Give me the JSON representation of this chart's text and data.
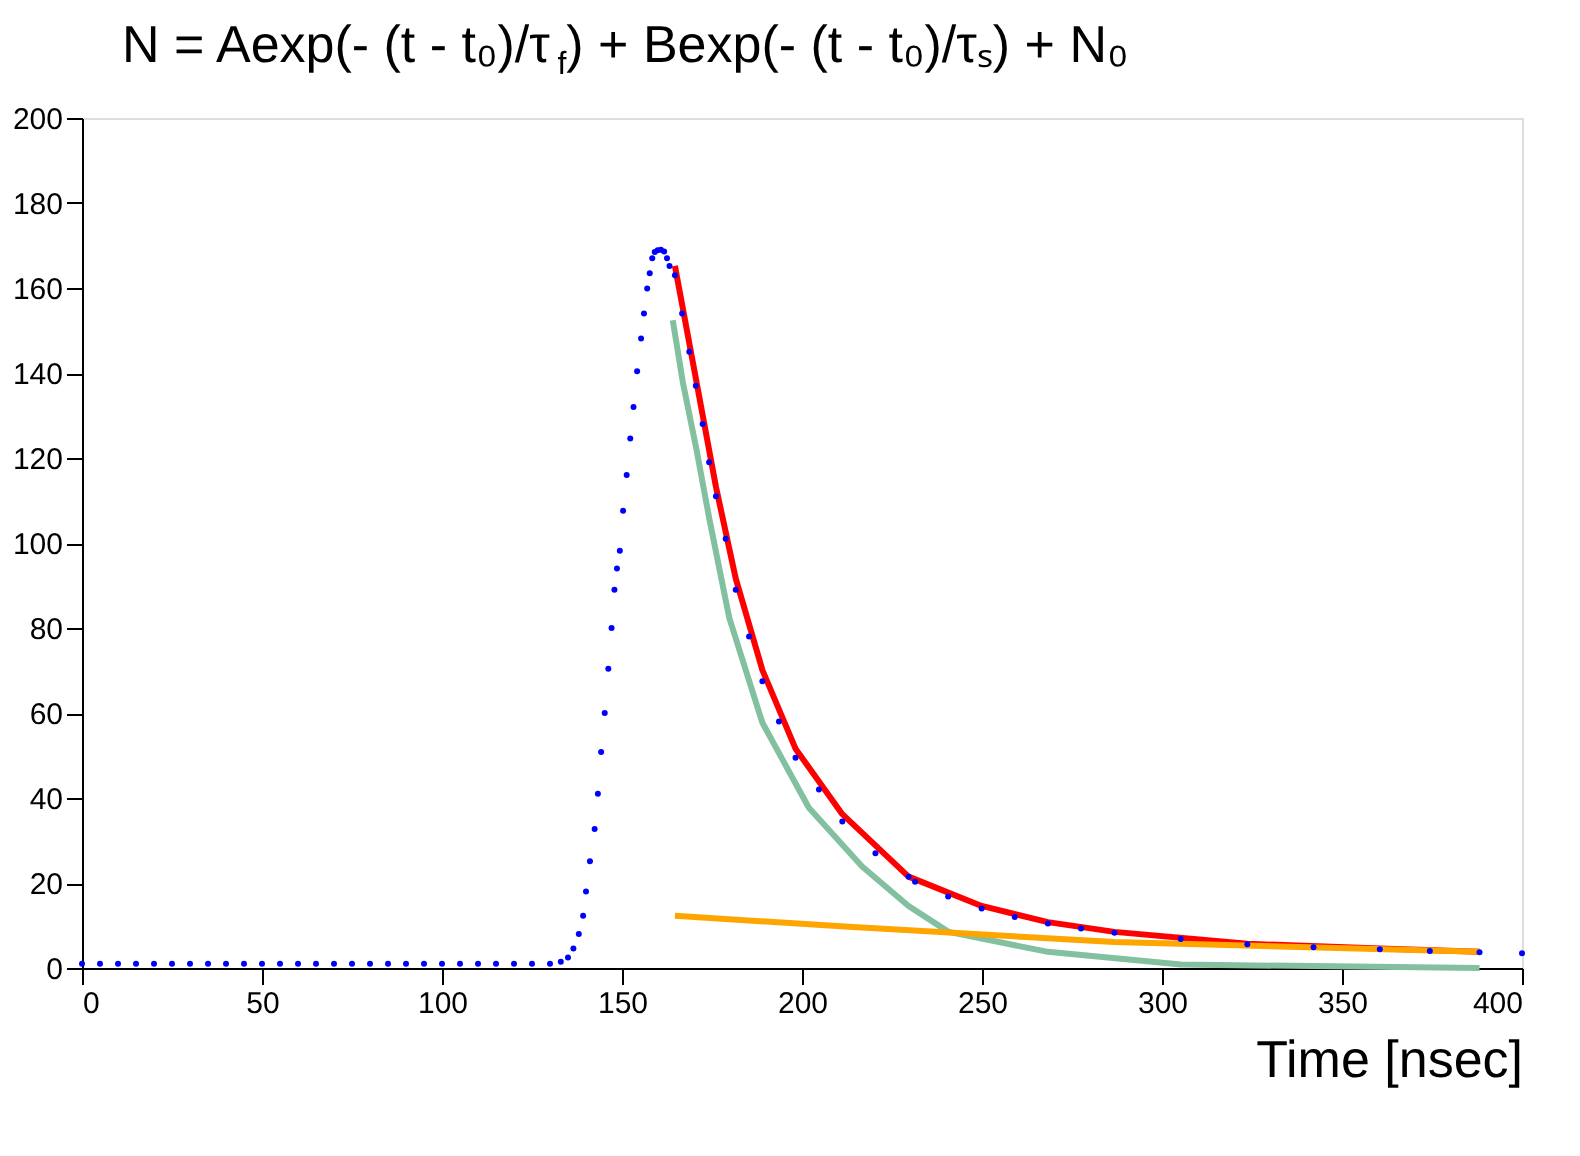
{
  "chart_data": {
    "type": "line",
    "title": "N = Aexp(- (t - t₀)/τ$_{f}$) + Bexp(- (t - t₀)/τₛ) + N₀",
    "xlabel": "Time  [nsec]",
    "xlim": [
      0,
      400
    ],
    "xticks": [
      0,
      50,
      100,
      150,
      200,
      250,
      300,
      350,
      400
    ],
    "ylim": [
      0,
      200
    ],
    "yticks": [
      0,
      20,
      40,
      60,
      80,
      100,
      120,
      140,
      160,
      180,
      200
    ],
    "grid": false,
    "line_style": "solid",
    "series": [
      {
        "type": "scatter",
        "marker": "circle",
        "color": "#0000ff",
        "x": [
          0,
          5,
          10,
          15,
          20,
          25,
          30,
          35,
          40,
          45,
          50,
          55,
          60,
          65,
          70,
          75,
          80,
          85,
          90,
          95,
          100,
          105,
          110,
          115,
          120,
          125,
          130,
          133,
          135,
          136.5,
          138,
          139.2,
          140,
          141.1,
          142.4,
          143.3,
          144.2,
          145.2,
          146.2,
          147.1,
          147.9,
          148.6,
          149.4,
          150.3,
          151.3,
          152.3,
          153.2,
          154.2,
          155.3,
          156.1,
          157,
          157.7,
          158.4,
          159.1,
          159.9,
          160.8,
          161.7,
          162.5,
          163.2,
          164.7,
          166.7,
          168.7,
          170.5,
          172.4,
          174.2,
          176.1,
          178.8,
          181.6,
          185.3,
          189,
          193.6,
          198.2,
          204.7,
          211.2,
          220.4,
          229.6,
          231.4,
          240.6,
          249.9,
          259.1,
          268.3,
          277.5,
          286.8,
          305.2,
          323.7,
          342.1,
          360.5,
          374.4,
          388.2,
          400
        ],
        "values": [
          1,
          1,
          1,
          1,
          1,
          1,
          1,
          1,
          1,
          1,
          1,
          1,
          1,
          1,
          1,
          1,
          1,
          1,
          1,
          1,
          1,
          1,
          1,
          1,
          1,
          1,
          1,
          1.5,
          2.5,
          4.6,
          8,
          12.3,
          18,
          25.1,
          32.7,
          41,
          50.8,
          60,
          70.4,
          80,
          89,
          94,
          98.2,
          107.6,
          116,
          124.6,
          132,
          140.4,
          148.1,
          154,
          159.9,
          163.5,
          167,
          168.5,
          168.9,
          169,
          168.6,
          167,
          165.2,
          163,
          154,
          145,
          137,
          128,
          119,
          111,
          101,
          89,
          78,
          67.5,
          58,
          49.5,
          42,
          34.5,
          27,
          21.5,
          20.3,
          16.8,
          14,
          12,
          10.5,
          9.3,
          8.3,
          6.8,
          5.6,
          4.9,
          4.4,
          4,
          3.7,
          3.5
        ]
      },
      {
        "color": "#ff0000",
        "x": [
          164.7,
          168.7,
          172.4,
          176.1,
          181.6,
          189,
          198.2,
          211.2,
          229.6,
          249.9,
          268.3,
          286.8,
          323.7,
          360.5,
          388.2
        ],
        "values": [
          165.2,
          147,
          130.1,
          113.2,
          91.6,
          70.1,
          51.6,
          36.2,
          21.5,
          14.6,
          10.8,
          8.5,
          5.7,
          4.6,
          3.8
        ]
      },
      {
        "color": "#82c09f",
        "x": [
          164.1,
          166.9,
          170.6,
          174.3,
          179.8,
          189,
          201.9,
          216.7,
          229.6,
          240.7,
          268.3,
          305.2,
          388.2
        ],
        "values": [
          152.4,
          137.8,
          122.4,
          105.5,
          82.4,
          57.7,
          37.7,
          23.9,
          14.6,
          8.5,
          3.8,
          0.8,
          0
        ]
      },
      {
        "color": "#ffa500",
        "x": [
          164.7,
          213,
          286.8,
          388.2
        ],
        "values": [
          12.3,
          9.7,
          6.1,
          3.8
        ]
      }
    ]
  }
}
